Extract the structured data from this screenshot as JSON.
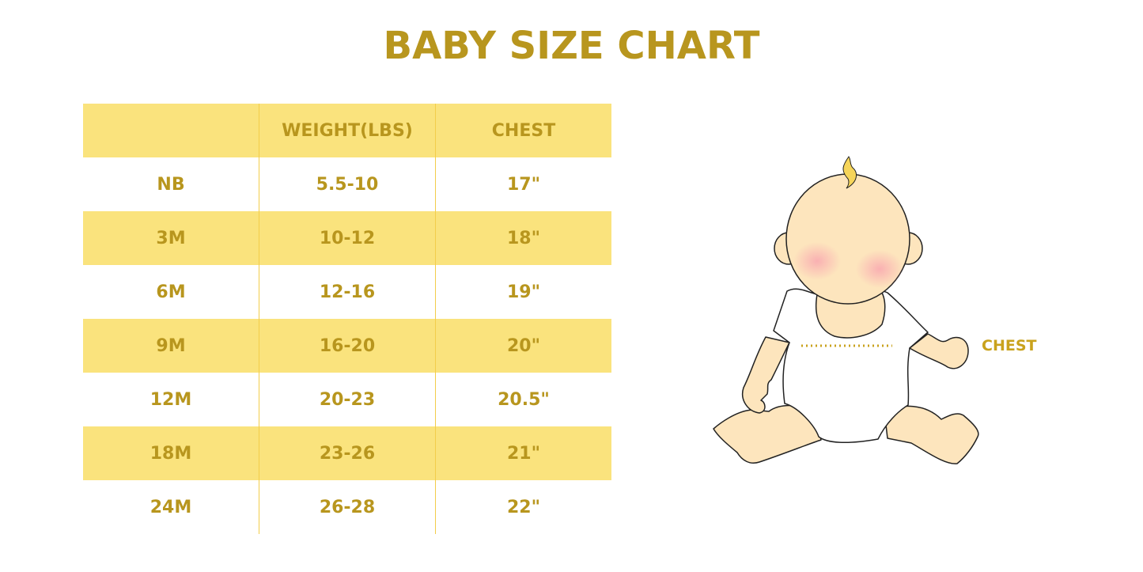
{
  "title": "BABY SIZE CHART",
  "table": {
    "headers": [
      "",
      "WEIGHT(LBS)",
      "CHEST"
    ],
    "rows": [
      [
        "NB",
        "5.5-10",
        "17\""
      ],
      [
        "3M",
        "10-12",
        "18\""
      ],
      [
        "6M",
        "12-16",
        "19\""
      ],
      [
        "9M",
        "16-20",
        "20\""
      ],
      [
        "12M",
        "20-23",
        "20.5\""
      ],
      [
        "18M",
        "23-26",
        "21\""
      ],
      [
        "24M",
        "26-28",
        "22\""
      ]
    ]
  },
  "illustration": {
    "chest_label": "CHEST"
  },
  "colors": {
    "text": "#b8961e",
    "band": "#fae37d",
    "skin": "#fde5bd"
  }
}
